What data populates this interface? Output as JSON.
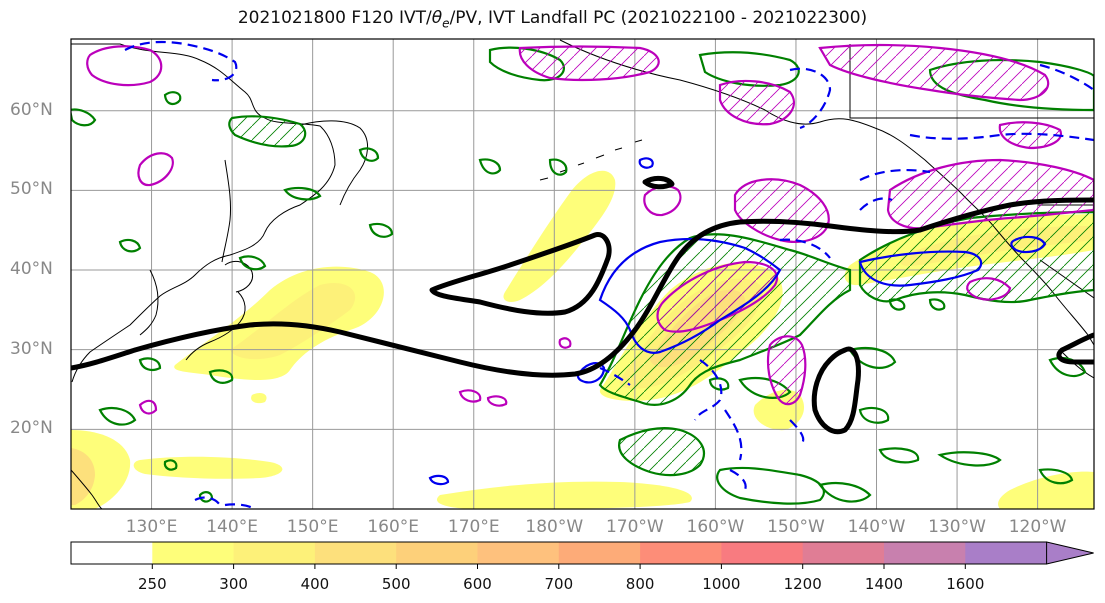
{
  "map": {
    "title": "2021021800 F120 IVT/θe/PV, IVT Landfall PC (2021022100 - 2021022300)",
    "title_prefix": "2021021800 F120 IVT/",
    "title_theta": "θ",
    "title_sub": "e",
    "title_suffix": "/PV, IVT Landfall PC (2021022100 - 2021022300)",
    "lat_labels": [
      "60°N",
      "50°N",
      "40°N",
      "30°N",
      "20°N"
    ],
    "lon_labels": [
      "130°E",
      "140°E",
      "150°E",
      "160°E",
      "170°E",
      "180°W",
      "170°W",
      "160°W",
      "150°W",
      "140°W",
      "130°W",
      "120°W"
    ],
    "lat_values": [
      60,
      50,
      40,
      30,
      20
    ],
    "lon_values": [
      130,
      140,
      150,
      160,
      170,
      180,
      190,
      200,
      210,
      220,
      230,
      240
    ],
    "extent": {
      "lon": [
        120,
        247
      ],
      "lat": [
        10,
        69
      ]
    },
    "gridlines": true,
    "colors": {
      "theta_e_contour": "#000000",
      "pv_contour_positive": "#bb00bb",
      "pv_contour_negative": "#0000ee",
      "pc_contour": "#008000",
      "coastline": "#000000",
      "grid": "#999999"
    }
  },
  "colorbar": {
    "ticks": [
      "250",
      "300",
      "400",
      "500",
      "600",
      "700",
      "800",
      "1000",
      "1200",
      "1400",
      "1600"
    ],
    "bins": [
      {
        "color": "#ffffff"
      },
      {
        "color": "#fefe7a"
      },
      {
        "color": "#fdf179"
      },
      {
        "color": "#fde07c"
      },
      {
        "color": "#fdd07a"
      },
      {
        "color": "#fec17d"
      },
      {
        "color": "#fdab78"
      },
      {
        "color": "#fd8d78"
      },
      {
        "color": "#f87b80"
      },
      {
        "color": "#e07d95"
      },
      {
        "color": "#c880ae"
      },
      {
        "color": "#a97ec8"
      }
    ],
    "extend": "max"
  }
}
